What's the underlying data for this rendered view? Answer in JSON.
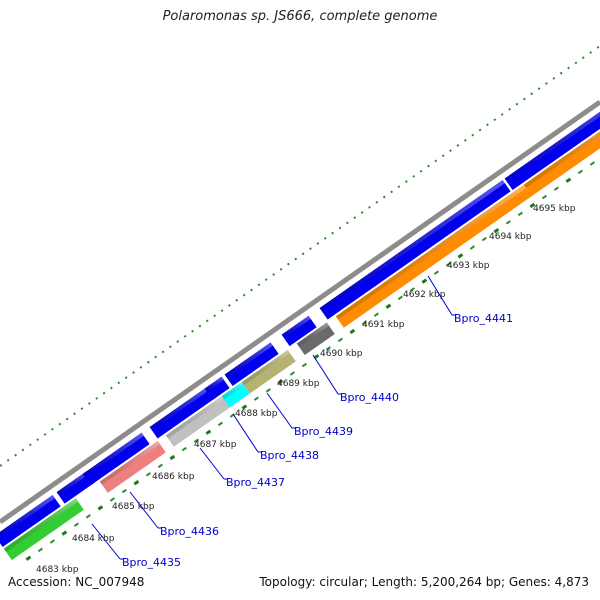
{
  "title": "Polaromonas sp. JS666, complete genome",
  "footer": {
    "accession": "Accession: NC_007948",
    "summary": "Topology: circular; Length: 5,200,264 bp; Genes: 4,873"
  },
  "colors": {
    "backbone": "#8c8c8c",
    "forward_gene": "#0000ee",
    "tick_major": "#1a7a1a",
    "tick_minor": "#2e8b2e",
    "label_line": "#0000cc"
  },
  "position_labels": [
    "4683 kbp",
    "4684 kbp",
    "4685 kbp",
    "4686 kbp",
    "4687 kbp",
    "4688 kbp",
    "4689 kbp",
    "4690 kbp",
    "4691 kbp",
    "4692 kbp",
    "4693 kbp",
    "4694 kbp",
    "4695 kbp"
  ],
  "genes": [
    {
      "label": "Bpro_4435",
      "color": "#33cc33"
    },
    {
      "label": "Bpro_4436",
      "color": "#ee7f7f"
    },
    {
      "label": "Bpro_4437",
      "color": "#c0c0c0"
    },
    {
      "label": "Bpro_4438",
      "color": "#00ffff"
    },
    {
      "label": "Bpro_4439",
      "color": "#b5b272"
    },
    {
      "label": "Bpro_4440",
      "color": "#6a6a6a"
    },
    {
      "label": "Bpro_4441",
      "color": "#ff8c00"
    }
  ]
}
